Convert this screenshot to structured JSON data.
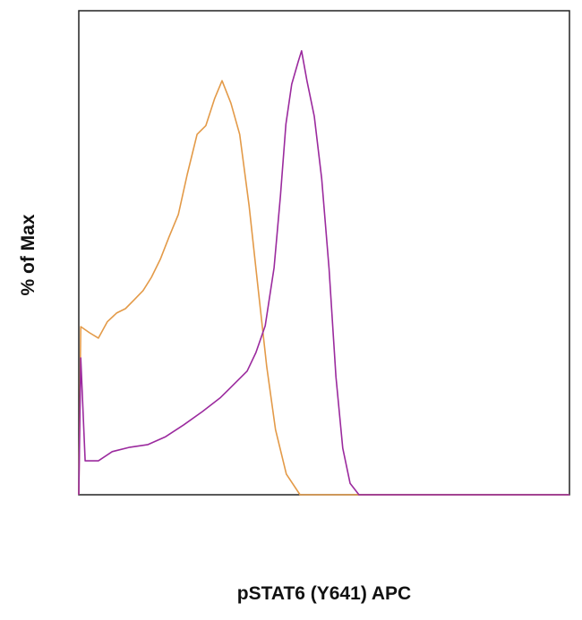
{
  "chart_data": {
    "type": "line",
    "x_label": "pSTAT6 (Y641) APC",
    "y_label": "% of Max",
    "xlim": [
      0,
      100
    ],
    "ylim": [
      0,
      110
    ],
    "series": [
      {
        "color": "#e39a48",
        "x": [
          0,
          0.4,
          2.2,
          4,
          5.8,
          7.7,
          9.5,
          11.3,
          13.1,
          14.8,
          16.6,
          18.4,
          20.3,
          22.1,
          24.1,
          25.9,
          27.7,
          29.2,
          31,
          32.8,
          34.7,
          36.5,
          38.3,
          40.1,
          42.3,
          45.1,
          100
        ],
        "values": [
          0,
          38.2,
          36.8,
          35.6,
          39.3,
          41.3,
          42.3,
          44.3,
          46.4,
          49.4,
          53.5,
          58.6,
          63.7,
          72.8,
          81.9,
          83.9,
          90.1,
          94.1,
          89,
          81.9,
          65.7,
          47.4,
          29.1,
          14.8,
          4.7,
          0,
          0
        ]
      },
      {
        "color": "#9b2a9e",
        "x": [
          0,
          0.4,
          1.3,
          4,
          6.8,
          10.4,
          14.1,
          17.7,
          21.4,
          25.2,
          28.8,
          31.6,
          34.3,
          36.1,
          38,
          39.8,
          41.1,
          42.2,
          43.4,
          44.7,
          45.4,
          46.5,
          48,
          49.5,
          51,
          52.4,
          53.8,
          55.3,
          57.1,
          100
        ],
        "values": [
          0,
          31.1,
          7.7,
          7.7,
          9.8,
          10.8,
          11.4,
          13.2,
          15.9,
          18.9,
          22,
          25.1,
          28.1,
          32.3,
          38.4,
          51.6,
          67.9,
          84.2,
          93.3,
          98.4,
          100.9,
          94.1,
          86,
          71.8,
          51.4,
          26.8,
          10.6,
          2.6,
          0,
          0
        ]
      }
    ]
  }
}
